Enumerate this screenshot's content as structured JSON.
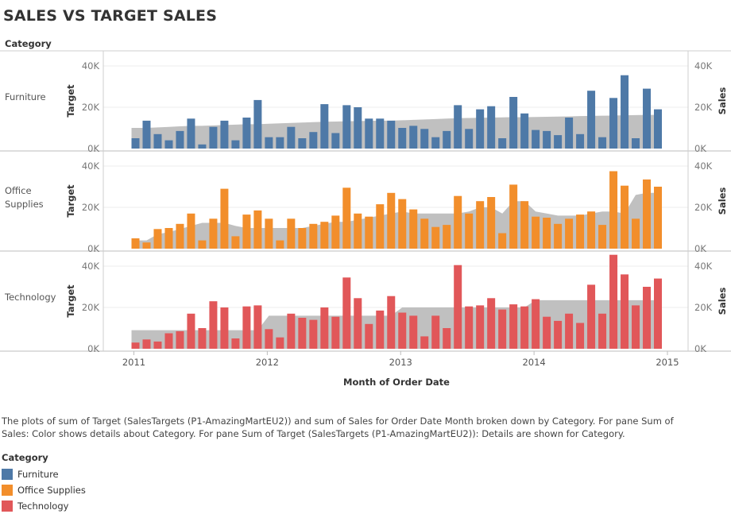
{
  "page": {
    "title": "SALES VS TARGET SALES",
    "row_header": "Category",
    "caption": "The plots of sum of Target (SalesTargets (P1-AmazingMartEU2)) and sum of Sales for Order Date Month broken down by Category.  For pane Sum of Sales:  Color shows details about Category.  For pane Sum of Target (SalesTargets (P1-AmazingMartEU2)):  Details are shown for Category.",
    "legend_title": "Category"
  },
  "chart_data": {
    "type": "bar",
    "xlabel": "Month of Order Date",
    "left_axis_label": "Target",
    "right_axis_label": "Sales",
    "x_ticks": [
      "2011",
      "2012",
      "2013",
      "2014",
      "2015"
    ],
    "y_ticks": [
      "0K",
      "20K",
      "40K"
    ],
    "ylim": [
      0,
      43000
    ],
    "grid": true,
    "area_color": "#bdbdbd",
    "months": [
      "2011-01",
      "2011-02",
      "2011-03",
      "2011-04",
      "2011-05",
      "2011-06",
      "2011-07",
      "2011-08",
      "2011-09",
      "2011-10",
      "2011-11",
      "2011-12",
      "2012-01",
      "2012-02",
      "2012-03",
      "2012-04",
      "2012-05",
      "2012-06",
      "2012-07",
      "2012-08",
      "2012-09",
      "2012-10",
      "2012-11",
      "2012-12",
      "2013-01",
      "2013-02",
      "2013-03",
      "2013-04",
      "2013-05",
      "2013-06",
      "2013-07",
      "2013-08",
      "2013-09",
      "2013-10",
      "2013-11",
      "2013-12",
      "2014-01",
      "2014-02",
      "2014-03",
      "2014-04",
      "2014-05",
      "2014-06",
      "2014-07",
      "2014-08",
      "2014-09",
      "2014-10",
      "2014-11",
      "2014-12"
    ],
    "panels": [
      {
        "category": "Furniture",
        "color": "#4e79a7",
        "sales": [
          5000,
          13500,
          7000,
          4000,
          8500,
          14500,
          2000,
          10500,
          13500,
          4000,
          15000,
          23500,
          5500,
          5500,
          10500,
          5000,
          8000,
          21500,
          7500,
          21000,
          20000,
          14500,
          14500,
          13500,
          10000,
          11000,
          9500,
          5500,
          8500,
          21000,
          9500,
          19000,
          20500,
          5000,
          25000,
          17000,
          9000,
          8500,
          6500,
          15000,
          7000,
          28000,
          5500,
          24500,
          35500,
          5000,
          29000,
          19000
        ],
        "target": [
          10000,
          10000,
          10250,
          10500,
          10750,
          11000,
          11000,
          11200,
          11400,
          11600,
          11800,
          11800,
          12000,
          12200,
          12400,
          12600,
          12800,
          13000,
          13100,
          13200,
          13300,
          13400,
          13500,
          13500,
          13700,
          13900,
          14100,
          14300,
          14500,
          14700,
          14800,
          14900,
          15000,
          15100,
          15200,
          15200,
          15300,
          15400,
          15500,
          15600,
          15700,
          15800,
          15900,
          16000,
          16100,
          16200,
          16300,
          16300
        ]
      },
      {
        "category": "Office Supplies",
        "color": "#f28e2b",
        "sales": [
          5000,
          3000,
          9500,
          10000,
          12000,
          17000,
          4000,
          14500,
          29000,
          6000,
          16500,
          18500,
          14500,
          4000,
          14500,
          10000,
          12000,
          13000,
          16000,
          29500,
          17000,
          15500,
          21500,
          27000,
          24000,
          19000,
          14500,
          10500,
          11500,
          25500,
          17000,
          23000,
          25000,
          7500,
          31000,
          23000,
          15500,
          15000,
          12000,
          14500,
          16500,
          18000,
          11500,
          37500,
          30500,
          14500,
          33500,
          30000
        ],
        "target": [
          4000,
          4000,
          7000,
          8000,
          9500,
          11000,
          12500,
          12500,
          12500,
          11000,
          10000,
          10000,
          10000,
          10000,
          10000,
          10000,
          11000,
          12000,
          13000,
          13000,
          14000,
          15000,
          16000,
          17000,
          18000,
          17000,
          17000,
          17000,
          17000,
          17000,
          18000,
          20000,
          20000,
          17000,
          23000,
          23000,
          18000,
          17000,
          16000,
          16000,
          16000,
          17000,
          18000,
          18000,
          17000,
          26000,
          27000,
          27000
        ]
      },
      {
        "category": "Technology",
        "color": "#e15759",
        "sales": [
          3000,
          4500,
          3500,
          7500,
          8500,
          17000,
          10000,
          23000,
          20000,
          5000,
          20500,
          21000,
          9500,
          5500,
          17000,
          15000,
          14000,
          20000,
          15500,
          34500,
          24500,
          12000,
          18500,
          25500,
          17500,
          16000,
          6000,
          16000,
          10000,
          40500,
          20500,
          21000,
          24500,
          19000,
          21500,
          20500,
          24000,
          15500,
          13500,
          17000,
          12500,
          31000,
          17000,
          45500,
          36000,
          21000,
          30000,
          34000
        ]
      },
      {
        "category": "Technology",
        "target_only": true,
        "target": [
          9000,
          9000,
          9000,
          9000,
          9000,
          9000,
          9000,
          9000,
          9000,
          9000,
          9000,
          9000,
          16000,
          16000,
          16000,
          16000,
          16000,
          16000,
          16000,
          16000,
          16000,
          16000,
          16000,
          16000,
          20000,
          20000,
          20000,
          20000,
          20000,
          20000,
          20000,
          20000,
          20000,
          20000,
          20000,
          20000,
          23500,
          23500,
          23500,
          23500,
          23500,
          23500,
          23500,
          23500,
          23500,
          23500,
          23500,
          23500
        ]
      }
    ]
  },
  "legend": [
    {
      "label": "Furniture",
      "color": "#4e79a7"
    },
    {
      "label": "Office Supplies",
      "color": "#f28e2b"
    },
    {
      "label": "Technology",
      "color": "#e15759"
    }
  ]
}
